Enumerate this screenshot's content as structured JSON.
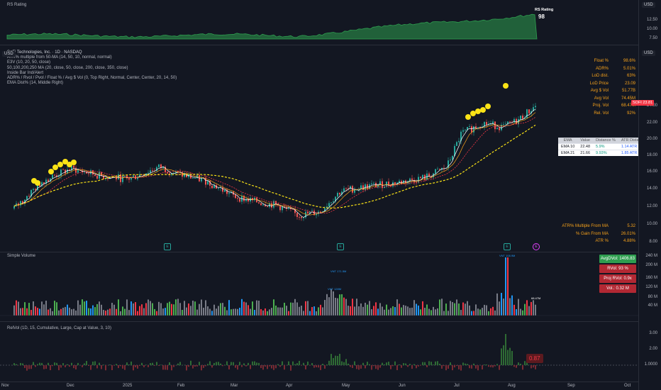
{
  "rs_pane": {
    "title": "RS Rating",
    "badge_label": "RS Rating",
    "badge_value": "98",
    "axis_ticks": [
      "12.50",
      "10.00",
      "7.50"
    ],
    "currency": "USD"
  },
  "main": {
    "currency": "USD",
    "symbol_line": "SoFi Technologies, Inc. · 1D · NASDAQ",
    "indicators": [
      "ATR% multiple from 50-MA (14, 50, 10, normal, normal)",
      "E3V (10, 20, 50, close)",
      "50,100,200,250 MA (20, close, 50, close, 200, close, 350, close)",
      "Inside Bar Ind/Alert",
      "ADR% / Rvol / Pvol / Float % / Avg $ Vol (0, Top Right, Normal, Center, Center, 20, 14, 50)",
      "EMA Dist% (14, Middle Right)"
    ],
    "price_tag": {
      "symbol": "SOFI",
      "price": "23.81"
    },
    "axis_ticks": [
      "24.00",
      "22.00",
      "20.00",
      "18.00",
      "16.00",
      "14.00",
      "12.00",
      "10.00",
      "8.00"
    ],
    "stats": [
      {
        "label": "Float %",
        "value": "98.6%"
      },
      {
        "label": "ADR%",
        "value": "5.01%"
      },
      {
        "label": "LoD dist.",
        "value": "63%"
      },
      {
        "label": "LoD Price",
        "value": "23.09"
      },
      {
        "label": "Avg $ Vol",
        "value": "51.77B"
      },
      {
        "label": "Avg Vol",
        "value": "74.45M"
      },
      {
        "label": "Proj. Vol",
        "value": "68.47M"
      },
      {
        "label": "Rel. Vol",
        "value": "92%"
      }
    ],
    "ema_table": {
      "headers": [
        "EMA",
        "Value",
        "Distance %",
        "ATR Distance"
      ],
      "rows": [
        [
          "EMA 10",
          "22.48",
          "5.9%",
          "1.14 ATR"
        ],
        [
          "EMA 21",
          "21.66",
          "9.93%",
          "1.85 ATR"
        ]
      ]
    },
    "atr_stats": [
      {
        "label": "ATR% Multiple From MA",
        "value": "5.32"
      },
      {
        "label": "% Gain From MA",
        "value": "26.01%"
      },
      {
        "label": "ATR %",
        "value": "4.88%"
      }
    ],
    "markers": [
      "E",
      "E",
      "E",
      "E"
    ]
  },
  "volume_pane": {
    "title": "Simple Volume",
    "axis_ticks": [
      "240 M",
      "200 M",
      "160 M",
      "120 M",
      "80 M",
      "40 M"
    ],
    "badges": [
      {
        "label": "AvgDVol: 1406.83 M",
        "color": "#2e9e4f"
      },
      {
        "label": "RVol: 93 %",
        "color": "#b22833"
      },
      {
        "label": "Proj RVol: 0.9x",
        "color": "#b22833"
      },
      {
        "label": "Vol.: 0.32 M",
        "color": "#b22833"
      }
    ],
    "annotations": [
      "VNT 171.5M",
      "VNT 128M",
      "VNT 108.9M",
      "68.47M"
    ]
  },
  "relvol_pane": {
    "title": "RelVol (1D, 15, Cumulative, Large, Cap at Value, 3, 10)",
    "axis_ticks": [
      "3.00",
      "2.00",
      "1.0000"
    ],
    "current_value": "0.87"
  },
  "x_axis": {
    "labels": [
      "Nov",
      "Dec",
      "2025",
      "Feb",
      "Mar",
      "Apr",
      "May",
      "Jun",
      "Jul",
      "Aug",
      "Sep",
      "Oct"
    ]
  },
  "colors": {
    "up": "#26a69a",
    "down": "#ef5350",
    "vol_green": "#4caf50",
    "vol_red": "#f23645",
    "vol_blue": "#2196f3",
    "vol_grey": "#787b86",
    "ema10": "#ffffff",
    "ema21": "#f7a21b",
    "ma50": "#f23645",
    "ma200": "#fbe316",
    "rs": "#2e9e4f"
  }
}
